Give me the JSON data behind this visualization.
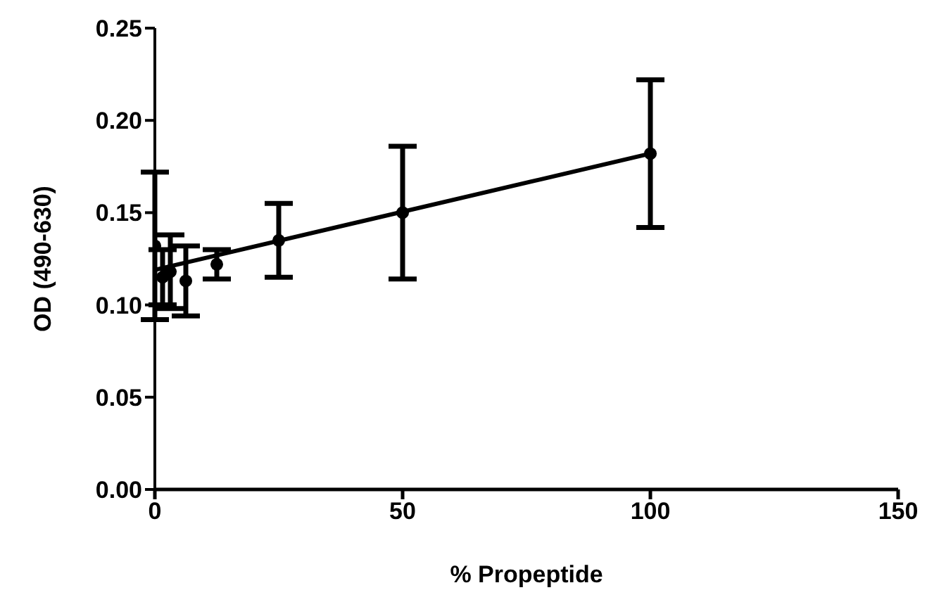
{
  "chart_data": {
    "type": "scatter",
    "xlabel": "% Propeptide",
    "ylabel": "OD (490-630)",
    "x": [
      0,
      1.56,
      3.125,
      6.25,
      12.5,
      25,
      50,
      100
    ],
    "series": [
      {
        "color": "#000000",
        "marker": "circle",
        "values": [
          0.132,
          0.115,
          0.118,
          0.113,
          0.122,
          0.135,
          0.15,
          0.182
        ],
        "errors": [
          0.04,
          0.015,
          0.02,
          0.019,
          0.008,
          0.02,
          0.036,
          0.04
        ]
      },
      {
        "type": "line",
        "color": "#000000",
        "marker": "none",
        "x": [
          0,
          100
        ],
        "values": [
          0.119,
          0.182
        ]
      }
    ],
    "xlim": [
      0,
      150
    ],
    "xticks": [
      0,
      50,
      100,
      150
    ],
    "ylim": [
      0,
      0.25
    ],
    "yticks": [
      {
        "value": 0,
        "label": "0.00"
      },
      {
        "value": 0.05,
        "label": "0.05"
      },
      {
        "value": 0.1,
        "label": "0.10"
      },
      {
        "value": 0.15,
        "label": "0.15"
      },
      {
        "value": 0.2,
        "label": "0.20"
      },
      {
        "value": 0.25,
        "label": "0.25"
      }
    ],
    "grid": false
  }
}
